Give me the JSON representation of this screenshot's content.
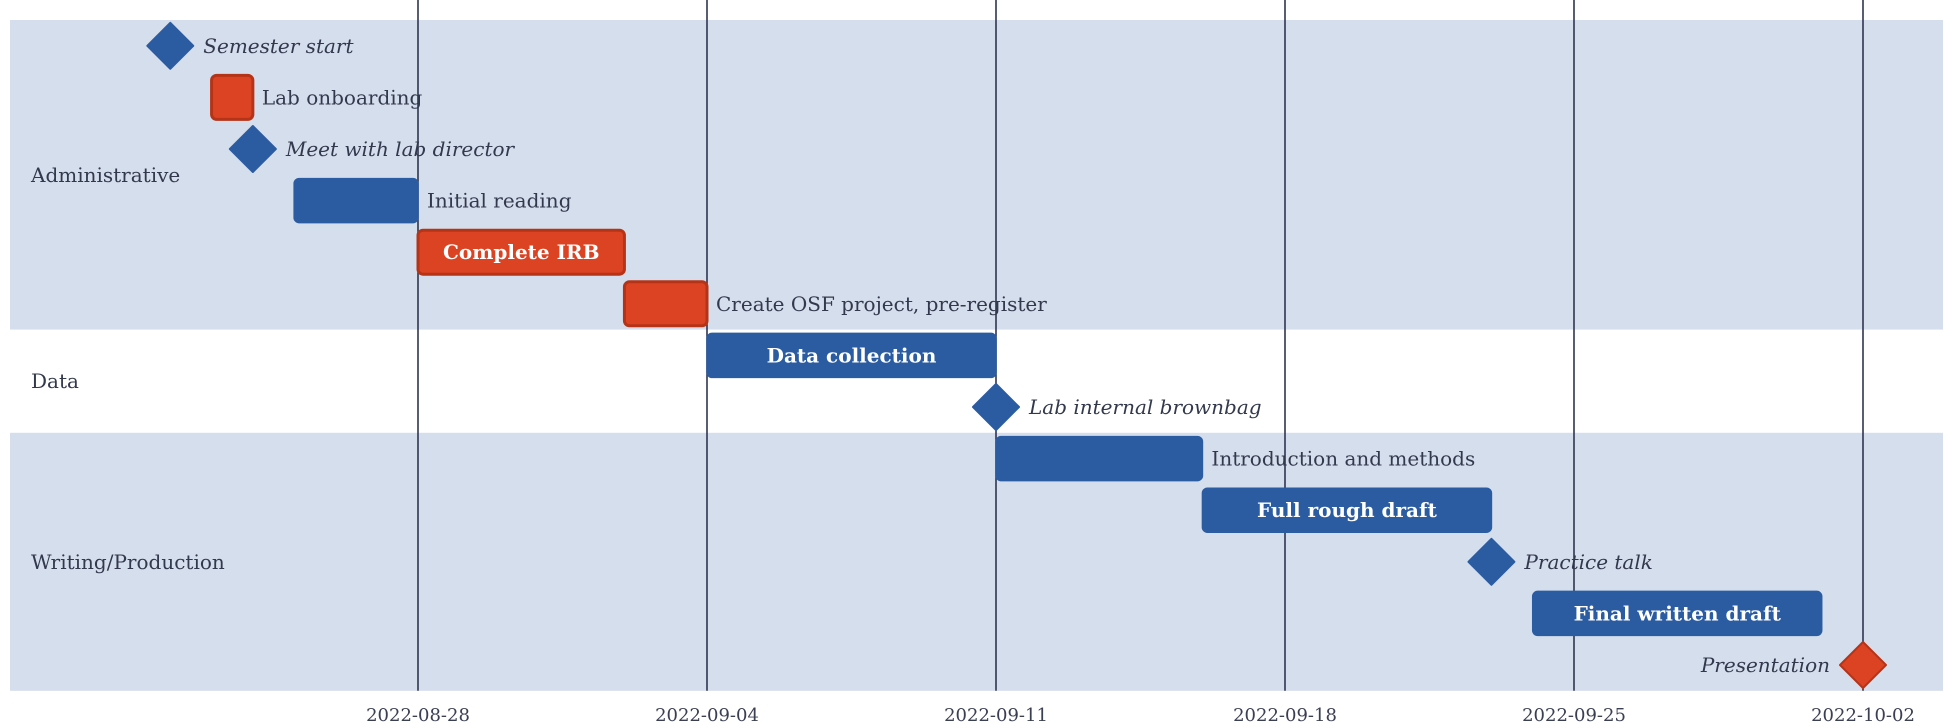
{
  "chart_data": {
    "type": "gantt",
    "x_axis": {
      "ticks": [
        "2022-08-28",
        "2022-09-04",
        "2022-09-11",
        "2022-09-18",
        "2022-09-25",
        "2022-10-02"
      ],
      "range": [
        "2022-08-18",
        "2022-10-04"
      ],
      "grid": true
    },
    "groups": [
      {
        "name": "Administrative",
        "shaded": true
      },
      {
        "name": "Data",
        "shaded": false
      },
      {
        "name": "Writing/Production",
        "shaded": true
      }
    ],
    "tasks": [
      {
        "label": "Semester start",
        "group": "Administrative",
        "start": "2022-08-22",
        "end": "2022-08-22",
        "milestone": true,
        "critical": false,
        "label_inside": false
      },
      {
        "label": "Lab onboarding",
        "group": "Administrative",
        "start": "2022-08-23",
        "end": "2022-08-24",
        "milestone": false,
        "critical": true,
        "label_inside": false
      },
      {
        "label": "Meet with lab director",
        "group": "Administrative",
        "start": "2022-08-24",
        "end": "2022-08-24",
        "milestone": true,
        "critical": false,
        "label_inside": false
      },
      {
        "label": "Initial reading",
        "group": "Administrative",
        "start": "2022-08-25",
        "end": "2022-08-28",
        "milestone": false,
        "critical": false,
        "label_inside": false
      },
      {
        "label": "Complete IRB",
        "group": "Administrative",
        "start": "2022-08-28",
        "end": "2022-09-02",
        "milestone": false,
        "critical": true,
        "label_inside": true
      },
      {
        "label": "Create OSF project, pre-register",
        "group": "Administrative",
        "start": "2022-09-02",
        "end": "2022-09-04",
        "milestone": false,
        "critical": true,
        "label_inside": false
      },
      {
        "label": "Data collection",
        "group": "Data",
        "start": "2022-09-04",
        "end": "2022-09-11",
        "milestone": false,
        "critical": false,
        "label_inside": true
      },
      {
        "label": "Lab internal brownbag",
        "group": "Data",
        "start": "2022-09-11",
        "end": "2022-09-11",
        "milestone": true,
        "critical": false,
        "label_inside": false
      },
      {
        "label": "Introduction and methods",
        "group": "Writing/Production",
        "start": "2022-09-11",
        "end": "2022-09-16",
        "milestone": false,
        "critical": false,
        "label_inside": false
      },
      {
        "label": "Full rough draft",
        "group": "Writing/Production",
        "start": "2022-09-16",
        "end": "2022-09-23",
        "milestone": false,
        "critical": false,
        "label_inside": true
      },
      {
        "label": "Practice talk",
        "group": "Writing/Production",
        "start": "2022-09-23",
        "end": "2022-09-23",
        "milestone": true,
        "critical": false,
        "label_inside": false
      },
      {
        "label": "Final written draft",
        "group": "Writing/Production",
        "start": "2022-09-24",
        "end": "2022-10-01",
        "milestone": false,
        "critical": false,
        "label_inside": true
      },
      {
        "label": "Presentation",
        "group": "Writing/Production",
        "start": "2022-10-02",
        "end": "2022-10-02",
        "milestone": true,
        "critical": true,
        "label_inside": false,
        "label_side": "left"
      }
    ],
    "colors": {
      "normal": "#2b5ca2",
      "critical": "#dc4323",
      "critical_border": "#b53418",
      "band": "#d5deec",
      "grid": "#2f3550"
    },
    "legend": "none"
  }
}
